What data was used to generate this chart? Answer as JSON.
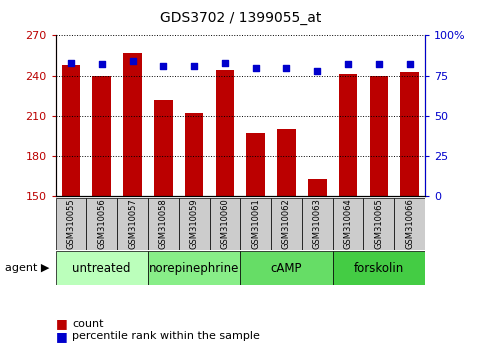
{
  "title": "GDS3702 / 1399055_at",
  "samples": [
    "GSM310055",
    "GSM310056",
    "GSM310057",
    "GSM310058",
    "GSM310059",
    "GSM310060",
    "GSM310061",
    "GSM310062",
    "GSM310063",
    "GSM310064",
    "GSM310065",
    "GSM310066"
  ],
  "counts": [
    248,
    240,
    257,
    222,
    212,
    244,
    197,
    200,
    163,
    241,
    240,
    243
  ],
  "percentiles": [
    83,
    82,
    84,
    81,
    81,
    83,
    80,
    80,
    78,
    82,
    82,
    82
  ],
  "ymin": 150,
  "ymax": 270,
  "yticks": [
    150,
    180,
    210,
    240,
    270
  ],
  "yright_ticks": [
    0,
    25,
    50,
    75,
    100
  ],
  "bar_color": "#bb0000",
  "dot_color": "#0000cc",
  "bar_width": 0.6,
  "groups": [
    {
      "label": "untreated",
      "start": 0,
      "end": 3,
      "color": "#bbffbb"
    },
    {
      "label": "norepinephrine",
      "start": 3,
      "end": 6,
      "color": "#88ee88"
    },
    {
      "label": "cAMP",
      "start": 6,
      "end": 9,
      "color": "#66dd66"
    },
    {
      "label": "forskolin",
      "start": 9,
      "end": 12,
      "color": "#44cc44"
    }
  ],
  "legend_count_label": "count",
  "legend_pct_label": "percentile rank within the sample",
  "agent_label": "agent",
  "title_fontsize": 10,
  "tick_fontsize": 8,
  "group_label_fontsize": 8.5,
  "sample_fontsize": 6,
  "legend_fontsize": 8
}
